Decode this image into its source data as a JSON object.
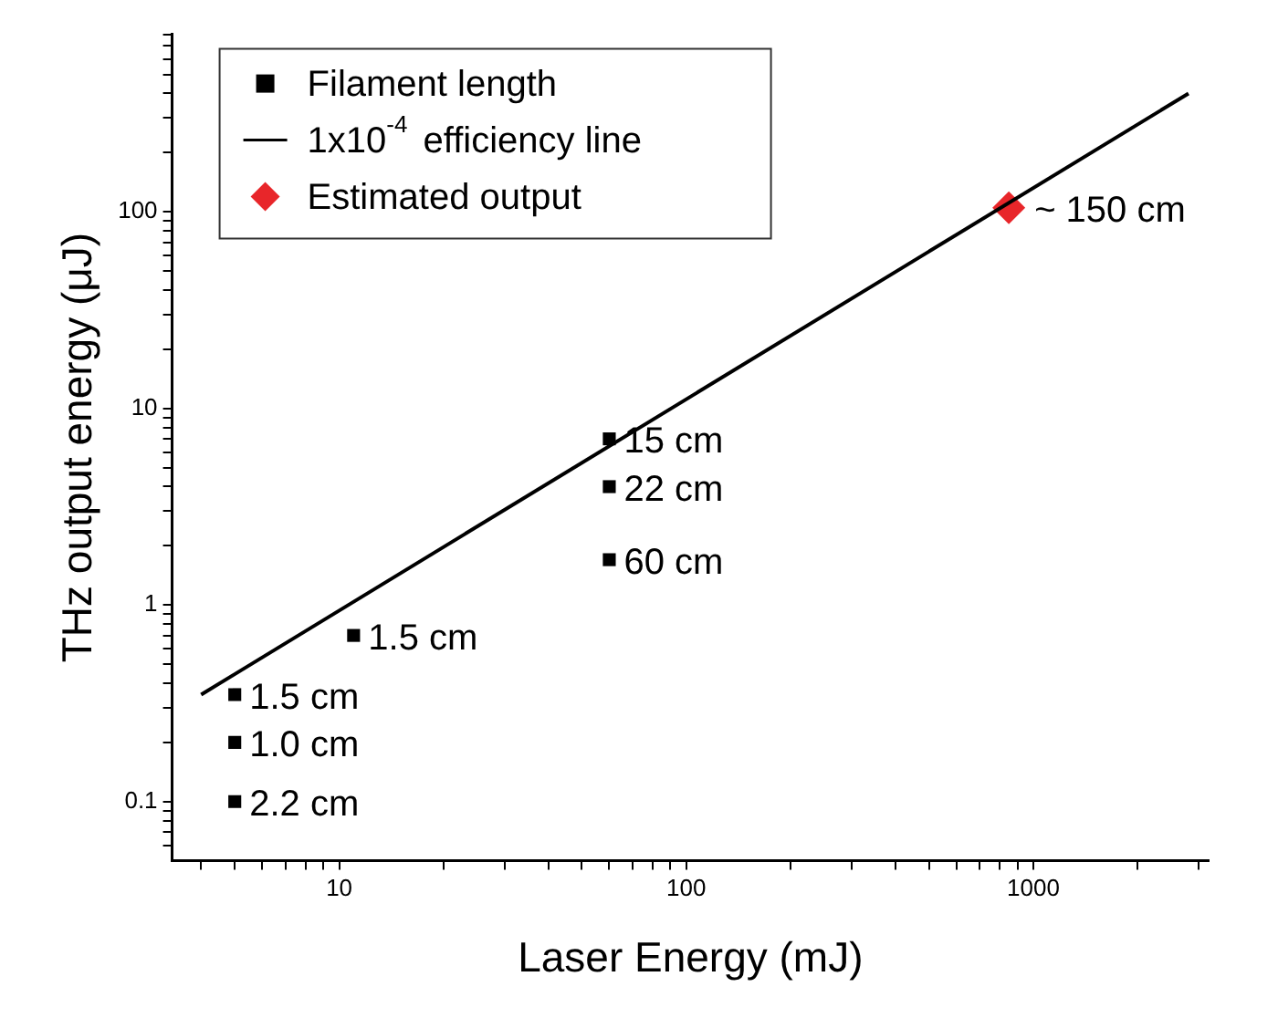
{
  "chart_data": {
    "type": "scatter",
    "xlabel": "Laser Energy (mJ)",
    "ylabel": "THz output energy (μJ)",
    "log": "xy",
    "legend": "top left",
    "grid": false,
    "xlim": [
      3.3,
      3200
    ],
    "ylim": [
      0.05,
      800
    ],
    "xticks": [
      {
        "value": 4,
        "label": null
      },
      {
        "value": 5,
        "label": null
      },
      {
        "value": 6,
        "label": null
      },
      {
        "value": 7,
        "label": null
      },
      {
        "value": 8,
        "label": null
      },
      {
        "value": 9,
        "label": null
      },
      10,
      {
        "value": 20,
        "label": null
      },
      {
        "value": 30,
        "label": null
      },
      {
        "value": 40,
        "label": null
      },
      {
        "value": 50,
        "label": null
      },
      {
        "value": 60,
        "label": null
      },
      {
        "value": 70,
        "label": null
      },
      {
        "value": 80,
        "label": null
      },
      {
        "value": 90,
        "label": null
      },
      100,
      {
        "value": 200,
        "label": null
      },
      {
        "value": 300,
        "label": null
      },
      {
        "value": 400,
        "label": null
      },
      {
        "value": 500,
        "label": null
      },
      {
        "value": 600,
        "label": null
      },
      {
        "value": 700,
        "label": null
      },
      {
        "value": 800,
        "label": null
      },
      {
        "value": 900,
        "label": null
      },
      1000,
      {
        "value": 2000,
        "label": null
      },
      {
        "value": 3000,
        "label": null
      }
    ],
    "yticks": [
      {
        "value": 0.06,
        "label": null
      },
      {
        "value": 0.07,
        "label": null
      },
      {
        "value": 0.08,
        "label": null
      },
      {
        "value": 0.09,
        "label": null
      },
      0.1,
      {
        "value": 0.2,
        "label": null
      },
      {
        "value": 0.3,
        "label": null
      },
      {
        "value": 0.4,
        "label": null
      },
      {
        "value": 0.5,
        "label": null
      },
      {
        "value": 0.6,
        "label": null
      },
      {
        "value": 0.7,
        "label": null
      },
      {
        "value": 0.8,
        "label": null
      },
      {
        "value": 0.9,
        "label": null
      },
      1,
      {
        "value": 2,
        "label": null
      },
      {
        "value": 3,
        "label": null
      },
      {
        "value": 4,
        "label": null
      },
      {
        "value": 5,
        "label": null
      },
      {
        "value": 6,
        "label": null
      },
      {
        "value": 7,
        "label": null
      },
      {
        "value": 8,
        "label": null
      },
      {
        "value": 9,
        "label": null
      },
      10,
      {
        "value": 20,
        "label": null
      },
      {
        "value": 30,
        "label": null
      },
      {
        "value": 40,
        "label": null
      },
      {
        "value": 50,
        "label": null
      },
      {
        "value": 60,
        "label": null
      },
      {
        "value": 70,
        "label": null
      },
      {
        "value": 80,
        "label": null
      },
      {
        "value": 90,
        "label": null
      },
      100,
      {
        "value": 200,
        "label": null
      },
      {
        "value": 300,
        "label": null
      },
      {
        "value": 400,
        "label": null
      },
      {
        "value": 500,
        "label": null
      },
      {
        "value": 600,
        "label": null
      },
      {
        "value": 700,
        "label": null
      },
      {
        "value": 800,
        "label": null
      }
    ],
    "series": [
      {
        "name": "Filament length",
        "type": "scatter",
        "marker": "square",
        "color": "#000000",
        "x": [
          5,
          5,
          5,
          11,
          60,
          60,
          60
        ],
        "values": [
          0.35,
          0.2,
          0.1,
          0.7,
          7,
          4,
          1.7
        ]
      },
      {
        "name": "1x10$^{-4}$ efficiency line",
        "type": "line",
        "marker": "none",
        "color": "#000000",
        "x": [
          4,
          2800
        ],
        "values": [
          0.35,
          400
        ]
      },
      {
        "name": "Estimated output",
        "type": "scatter",
        "marker": "diamond",
        "color": "#e8262a",
        "x": [
          850
        ],
        "values": [
          105
        ]
      }
    ],
    "annotations": [
      {
        "text": "1.5 cm",
        "x": 5,
        "y": 0.35
      },
      {
        "text": "1.0 cm",
        "x": 5,
        "y": 0.2
      },
      {
        "text": "2.2 cm",
        "x": 5,
        "y": 0.1
      },
      {
        "text": "1.5 cm",
        "x": 11,
        "y": 0.7
      },
      {
        "text": "15 cm",
        "x": 60,
        "y": 7
      },
      {
        "text": "22 cm",
        "x": 60,
        "y": 4
      },
      {
        "text": "60 cm",
        "x": 60,
        "y": 1.7
      },
      {
        "text": "~ 150 cm",
        "x": 850,
        "y": 105
      }
    ]
  }
}
